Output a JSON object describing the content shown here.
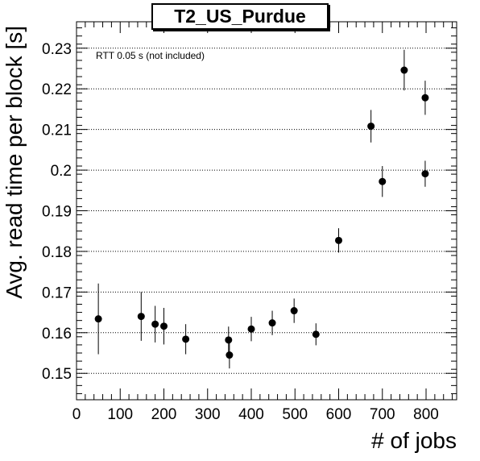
{
  "chart_data": {
    "type": "scatter",
    "title": "T2_US_Purdue",
    "xlabel": "# of jobs",
    "ylabel": "Avg. read time per block [s]",
    "annotation": "RTT 0.05 s (not included)",
    "xlim": [
      0,
      870
    ],
    "ylim": [
      0.1435,
      0.2365
    ],
    "x_ticks": [
      0,
      100,
      200,
      300,
      400,
      500,
      600,
      700,
      800
    ],
    "x_tick_labels": [
      "0",
      "100",
      "200",
      "300",
      "400",
      "500",
      "600",
      "700",
      "800"
    ],
    "y_ticks": [
      0.15,
      0.16,
      0.17,
      0.18,
      0.19,
      0.2,
      0.21,
      0.22,
      0.23
    ],
    "y_tick_labels": [
      "0.15",
      "0.16",
      "0.17",
      "0.18",
      "0.19",
      "0.2",
      "0.21",
      "0.22",
      "0.23"
    ],
    "grid": "horizontal dotted",
    "series": [
      {
        "marker_color": "#000000",
        "points": [
          {
            "x": 50,
            "y": 0.1634,
            "err": 0.0087
          },
          {
            "x": 148,
            "y": 0.164,
            "err": 0.006
          },
          {
            "x": 180,
            "y": 0.1621,
            "err": 0.0045
          },
          {
            "x": 200,
            "y": 0.1616,
            "err": 0.0045
          },
          {
            "x": 250,
            "y": 0.1584,
            "err": 0.0037
          },
          {
            "x": 348,
            "y": 0.1582,
            "err": 0.0033
          },
          {
            "x": 350,
            "y": 0.1545,
            "err": 0.0033
          },
          {
            "x": 400,
            "y": 0.1609,
            "err": 0.003
          },
          {
            "x": 448,
            "y": 0.1624,
            "err": 0.003
          },
          {
            "x": 498,
            "y": 0.1654,
            "err": 0.003
          },
          {
            "x": 548,
            "y": 0.1596,
            "err": 0.0027
          },
          {
            "x": 600,
            "y": 0.1827,
            "err": 0.003
          },
          {
            "x": 674,
            "y": 0.2108,
            "err": 0.004
          },
          {
            "x": 700,
            "y": 0.1972,
            "err": 0.0038
          },
          {
            "x": 750,
            "y": 0.2246,
            "err": 0.005
          },
          {
            "x": 798,
            "y": 0.1991,
            "err": 0.0032
          },
          {
            "x": 798,
            "y": 0.2178,
            "err": 0.0042
          }
        ]
      }
    ]
  }
}
